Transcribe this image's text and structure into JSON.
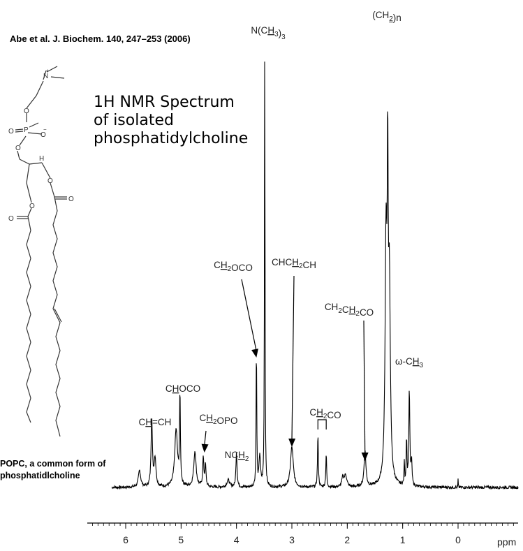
{
  "citation": "Abe et al. J. Biochem. 140, 247–253 (2006)",
  "title_lines": [
    "1H NMR Spectrum",
    "of isolated",
    "phosphatidylcholine"
  ],
  "caption_lines": [
    "POPC, a common form of",
    "phosphatidlcholine"
  ],
  "structure": {
    "atom_labels": [
      "N",
      "+",
      "O",
      "P",
      "O",
      "O",
      "O",
      "H",
      "O",
      "O",
      "O",
      "O",
      "−"
    ]
  },
  "chart_data": {
    "type": "line",
    "title": "1H NMR Spectrum",
    "xlabel": "ppm",
    "ylabel": "",
    "xlim": [
      6.8,
      -1.0
    ],
    "x_reversed": true,
    "grid": false,
    "xticks": [
      6,
      5,
      4,
      3,
      2,
      1,
      0
    ],
    "minor_tick_step": 0.1,
    "peaks": [
      {
        "ppm": 5.75,
        "height": 0.035,
        "width": 0.025
      },
      {
        "ppm": 5.53,
        "height": 0.145,
        "width": 0.014
      },
      {
        "ppm": 5.47,
        "height": 0.06,
        "width": 0.02
      },
      {
        "ppm": 5.09,
        "height": 0.12,
        "width": 0.03
      },
      {
        "ppm": 5.02,
        "height": 0.19,
        "width": 0.009
      },
      {
        "ppm": 4.75,
        "height": 0.075,
        "width": 0.025
      },
      {
        "ppm": 4.6,
        "height": 0.06,
        "width": 0.012
      },
      {
        "ppm": 4.56,
        "height": 0.045,
        "width": 0.012
      },
      {
        "ppm": 4.15,
        "height": 0.015,
        "width": 0.03
      },
      {
        "ppm": 4.0,
        "height": 0.075,
        "width": 0.012
      },
      {
        "ppm": 3.64,
        "height": 0.3,
        "width": 0.007
      },
      {
        "ppm": 3.58,
        "height": 0.065,
        "width": 0.016
      },
      {
        "ppm": 3.49,
        "height": 0.955,
        "width": 0.006
      },
      {
        "ppm": 3.0,
        "height": 0.085,
        "width": 0.03
      },
      {
        "ppm": 2.53,
        "height": 0.11,
        "width": 0.009
      },
      {
        "ppm": 2.38,
        "height": 0.07,
        "width": 0.009
      },
      {
        "ppm": 2.08,
        "height": 0.02,
        "width": 0.02
      },
      {
        "ppm": 2.03,
        "height": 0.025,
        "width": 0.025
      },
      {
        "ppm": 1.68,
        "height": 0.075,
        "width": 0.02
      },
      {
        "ppm": 1.3,
        "height": 0.5,
        "width": 0.02
      },
      {
        "ppm": 1.27,
        "height": 0.55,
        "width": 0.01
      },
      {
        "ppm": 1.24,
        "height": 0.4,
        "width": 0.02
      },
      {
        "ppm": 0.97,
        "height": 0.05,
        "width": 0.006
      },
      {
        "ppm": 0.93,
        "height": 0.1,
        "width": 0.008
      },
      {
        "ppm": 0.88,
        "height": 0.2,
        "width": 0.011
      },
      {
        "ppm": 0.84,
        "height": 0.05,
        "width": 0.01
      },
      {
        "ppm": 0.0,
        "height": 0.017,
        "width": 0.003
      }
    ],
    "annotations": [
      {
        "id": "ch2n",
        "text": [
          [
            "(CH",
            ""
          ],
          [
            "2",
            "ul-sub"
          ],
          [
            ")n",
            ""
          ]
        ],
        "ppm": 1.27,
        "arrow": false
      },
      {
        "id": "nch3",
        "text": [
          [
            "N(C",
            ""
          ],
          [
            "H",
            "ul"
          ],
          [
            "3",
            "sub"
          ],
          [
            ")",
            ""
          ],
          [
            "3",
            "sub"
          ]
        ],
        "ppm": 3.49,
        "arrow": false
      },
      {
        "id": "ch2oco",
        "text": [
          [
            "C",
            ""
          ],
          [
            "H",
            "ul"
          ],
          [
            "2",
            "sub"
          ],
          [
            "OCO",
            ""
          ]
        ],
        "ppm": 3.64,
        "arrow": true
      },
      {
        "id": "chch2ch",
        "text": [
          [
            "CHC",
            ""
          ],
          [
            "H",
            "ul"
          ],
          [
            "2",
            "sub"
          ],
          [
            "CH",
            ""
          ]
        ],
        "ppm": 3.0,
        "arrow": true
      },
      {
        "id": "ch2ch2co",
        "text": [
          [
            "CH",
            ""
          ],
          [
            "2",
            "sub"
          ],
          [
            "C",
            ""
          ],
          [
            "H",
            "ul"
          ],
          [
            "2",
            "sub"
          ],
          [
            "CO",
            ""
          ]
        ],
        "ppm": 1.68,
        "arrow": true
      },
      {
        "id": "omega",
        "text": [
          [
            "ω-C",
            ""
          ],
          [
            "H",
            "ul"
          ],
          [
            "3",
            "sub"
          ]
        ],
        "ppm": 0.88,
        "arrow": false
      },
      {
        "id": "chhoco",
        "text": [
          [
            "C",
            ""
          ],
          [
            "H",
            "ul"
          ],
          [
            "OCO",
            ""
          ]
        ],
        "ppm": 5.02,
        "arrow": false
      },
      {
        "id": "ch2opo",
        "text": [
          [
            "C",
            ""
          ],
          [
            "H",
            "ul"
          ],
          [
            "2",
            "sub"
          ],
          [
            "OPO",
            ""
          ]
        ],
        "ppm": 4.58,
        "arrow": true
      },
      {
        "id": "chch",
        "text": [
          [
            "C",
            ""
          ],
          [
            "H",
            "ul"
          ],
          [
            "=CH",
            ""
          ]
        ],
        "ppm": 5.53,
        "arrow": false
      },
      {
        "id": "nch2",
        "text": [
          [
            "NC",
            ""
          ],
          [
            "H",
            "ul"
          ],
          [
            "2",
            "sub"
          ]
        ],
        "ppm": 4.0,
        "arrow": false
      },
      {
        "id": "ch2co",
        "text": [
          [
            "C",
            ""
          ],
          [
            "H",
            "ul"
          ],
          [
            "2",
            "sub"
          ],
          [
            "CO",
            ""
          ]
        ],
        "ppm": 2.45,
        "bracket": [
          2.53,
          2.38
        ],
        "arrow": false
      }
    ],
    "colors": {
      "line": "#000000",
      "text": "#222222"
    }
  }
}
